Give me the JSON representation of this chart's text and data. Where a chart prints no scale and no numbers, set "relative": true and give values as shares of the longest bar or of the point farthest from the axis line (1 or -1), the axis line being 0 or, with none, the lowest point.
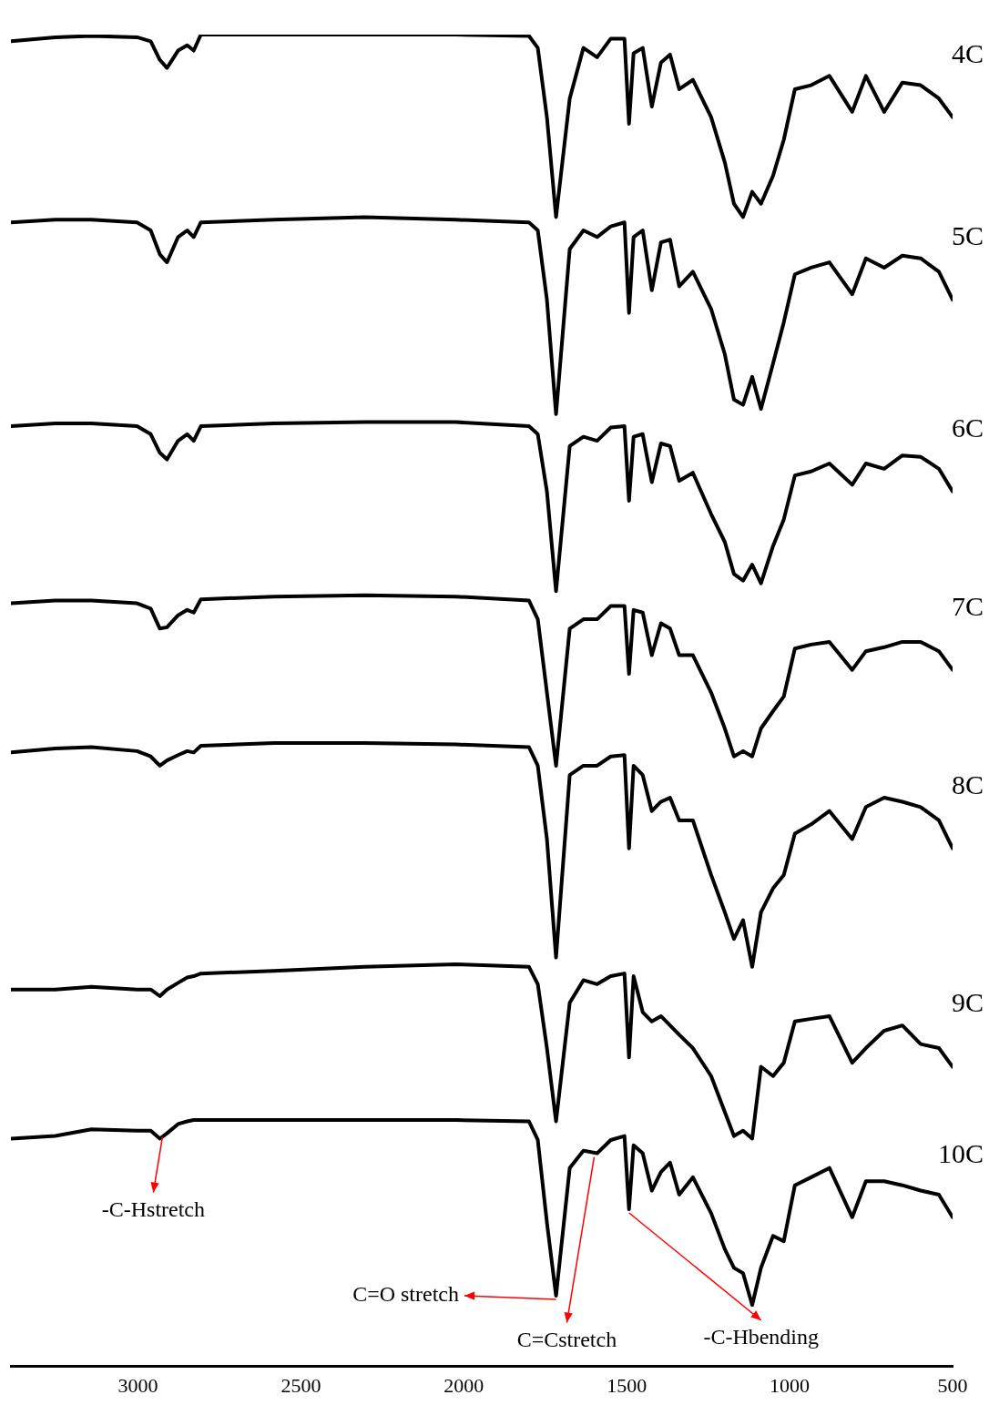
{
  "chart_data": {
    "type": "line",
    "relative": true,
    "marker": "none",
    "xlim": [
      3390,
      500
    ],
    "xticks": [
      3000,
      2500,
      2000,
      1500,
      1000,
      500
    ],
    "x": [
      3389,
      3254,
      3143,
      3003,
      2961,
      2933,
      2911,
      2877,
      2849,
      2829,
      2807,
      2583,
      2304,
      2024,
      1800,
      1773,
      1745,
      1717,
      1675,
      1633,
      1591,
      1549,
      1507,
      1493,
      1479,
      1451,
      1423,
      1395,
      1367,
      1339,
      1297,
      1241,
      1199,
      1171,
      1143,
      1115,
      1088,
      1051,
      1018,
      984,
      934,
      878,
      808,
      766,
      710,
      654,
      598,
      542,
      500
    ],
    "series": [
      {
        "name": "4C",
        "color": "#000000",
        "values": [
          0.995,
          0.998,
          0.999,
          0.998,
          0.995,
          0.981,
          0.975,
          0.988,
          0.992,
          0.988,
          1.0,
          1.0,
          1.0,
          1.0,
          0.999,
          0.99,
          0.938,
          0.863,
          0.952,
          0.99,
          0.983,
          0.997,
          0.997,
          0.933,
          0.986,
          0.99,
          0.946,
          0.979,
          0.985,
          0.959,
          0.966,
          0.938,
          0.904,
          0.873,
          0.863,
          0.882,
          0.873,
          0.894,
          0.921,
          0.959,
          0.962,
          0.969,
          0.942,
          0.969,
          0.942,
          0.964,
          0.962,
          0.952,
          0.938
        ]
      },
      {
        "name": "5C",
        "color": "#000000",
        "values": [
          0.859,
          0.861,
          0.861,
          0.859,
          0.853,
          0.835,
          0.829,
          0.848,
          0.853,
          0.848,
          0.859,
          0.861,
          0.863,
          0.861,
          0.859,
          0.853,
          0.801,
          0.715,
          0.839,
          0.853,
          0.848,
          0.856,
          0.859,
          0.791,
          0.848,
          0.853,
          0.808,
          0.844,
          0.846,
          0.811,
          0.822,
          0.794,
          0.76,
          0.726,
          0.722,
          0.743,
          0.719,
          0.753,
          0.784,
          0.82,
          0.825,
          0.829,
          0.805,
          0.832,
          0.825,
          0.834,
          0.832,
          0.822,
          0.801
        ]
      },
      {
        "name": "6C",
        "color": "#000000",
        "values": [
          0.706,
          0.708,
          0.708,
          0.706,
          0.7,
          0.686,
          0.681,
          0.695,
          0.7,
          0.695,
          0.706,
          0.708,
          0.709,
          0.709,
          0.706,
          0.7,
          0.657,
          0.582,
          0.691,
          0.698,
          0.695,
          0.705,
          0.706,
          0.65,
          0.698,
          0.7,
          0.664,
          0.693,
          0.691,
          0.665,
          0.671,
          0.64,
          0.619,
          0.595,
          0.59,
          0.602,
          0.588,
          0.616,
          0.636,
          0.669,
          0.672,
          0.678,
          0.662,
          0.678,
          0.674,
          0.684,
          0.683,
          0.674,
          0.657
        ]
      },
      {
        "name": "7C",
        "color": "#000000",
        "values": [
          0.573,
          0.575,
          0.575,
          0.573,
          0.569,
          0.554,
          0.555,
          0.564,
          0.568,
          0.566,
          0.576,
          0.578,
          0.579,
          0.578,
          0.575,
          0.561,
          0.506,
          0.451,
          0.554,
          0.561,
          0.561,
          0.571,
          0.571,
          0.52,
          0.568,
          0.566,
          0.534,
          0.558,
          0.554,
          0.534,
          0.534,
          0.506,
          0.479,
          0.458,
          0.462,
          0.458,
          0.479,
          0.492,
          0.503,
          0.539,
          0.542,
          0.544,
          0.523,
          0.537,
          0.54,
          0.544,
          0.544,
          0.537,
          0.523
        ]
      },
      {
        "name": "8C",
        "color": "#000000",
        "values": [
          0.461,
          0.464,
          0.465,
          0.462,
          0.458,
          0.451,
          0.455,
          0.459,
          0.462,
          0.461,
          0.466,
          0.468,
          0.468,
          0.467,
          0.465,
          0.451,
          0.396,
          0.307,
          0.444,
          0.451,
          0.451,
          0.458,
          0.459,
          0.389,
          0.451,
          0.444,
          0.417,
          0.424,
          0.427,
          0.41,
          0.41,
          0.369,
          0.341,
          0.321,
          0.335,
          0.3,
          0.341,
          0.359,
          0.369,
          0.4,
          0.407,
          0.417,
          0.396,
          0.42,
          0.427,
          0.424,
          0.42,
          0.41,
          0.389
        ]
      },
      {
        "name": "9C",
        "color": "#000000",
        "values": [
          0.283,
          0.283,
          0.285,
          0.283,
          0.283,
          0.278,
          0.283,
          0.288,
          0.292,
          0.293,
          0.295,
          0.297,
          0.3,
          0.302,
          0.3,
          0.287,
          0.239,
          0.184,
          0.273,
          0.29,
          0.287,
          0.293,
          0.295,
          0.232,
          0.293,
          0.266,
          0.259,
          0.263,
          0.256,
          0.249,
          0.239,
          0.218,
          0.191,
          0.173,
          0.177,
          0.171,
          0.225,
          0.218,
          0.228,
          0.259,
          0.261,
          0.263,
          0.228,
          0.239,
          0.252,
          0.256,
          0.242,
          0.239,
          0.225
        ]
      },
      {
        "name": "10C",
        "color": "#000000",
        "values": [
          0.171,
          0.173,
          0.178,
          0.177,
          0.177,
          0.171,
          0.175,
          0.182,
          0.184,
          0.185,
          0.185,
          0.185,
          0.185,
          0.185,
          0.184,
          0.17,
          0.108,
          0.053,
          0.149,
          0.162,
          0.16,
          0.17,
          0.173,
          0.118,
          0.166,
          0.16,
          0.132,
          0.146,
          0.153,
          0.129,
          0.142,
          0.115,
          0.088,
          0.074,
          0.07,
          0.046,
          0.074,
          0.098,
          0.094,
          0.136,
          0.142,
          0.149,
          0.112,
          0.139,
          0.139,
          0.136,
          0.132,
          0.129,
          0.112
        ]
      }
    ],
    "annotations": [
      {
        "text": "-C-Hstretch",
        "x": 2925,
        "y": 0.175
      },
      {
        "text": "C=O stretch",
        "x": 1717,
        "y": 0.053
      },
      {
        "text": "C=Cstretch",
        "x": 1600,
        "y": 0.16
      },
      {
        "text": "-C-Hbending",
        "x": 1493,
        "y": 0.118
      }
    ]
  }
}
